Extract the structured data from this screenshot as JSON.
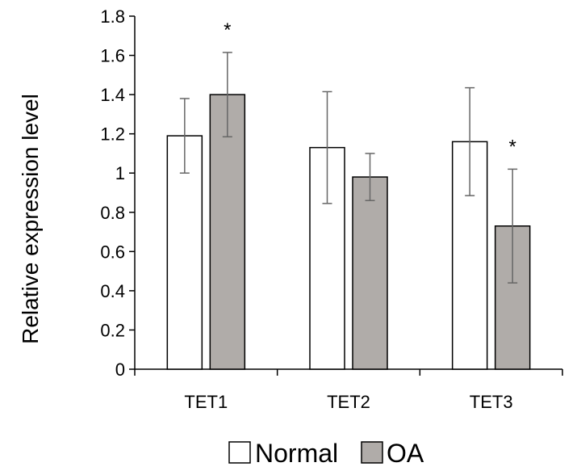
{
  "chart_data": {
    "type": "bar",
    "title": "",
    "xlabel": "",
    "ylabel": "Relative expression level",
    "ylim": [
      0,
      1.8
    ],
    "yticks": [
      "0",
      "0.2",
      "0.4",
      "0.6",
      "0.8",
      "1",
      "1.2",
      "1.4",
      "1.6",
      "1.8"
    ],
    "categories": [
      "TET1",
      "TET2",
      "TET3"
    ],
    "series": [
      {
        "name": "Normal",
        "color": "#ffffff",
        "values": [
          1.19,
          1.13,
          1.16
        ],
        "errors": [
          0.19,
          0.285,
          0.275
        ],
        "markers": [
          "",
          "",
          ""
        ]
      },
      {
        "name": "OA",
        "color": "#b0aca9",
        "values": [
          1.4,
          0.98,
          0.73
        ],
        "errors": [
          0.215,
          0.12,
          0.29
        ],
        "markers": [
          "*",
          "",
          "*"
        ]
      }
    ],
    "legend_position": "bottom",
    "grid": false
  }
}
